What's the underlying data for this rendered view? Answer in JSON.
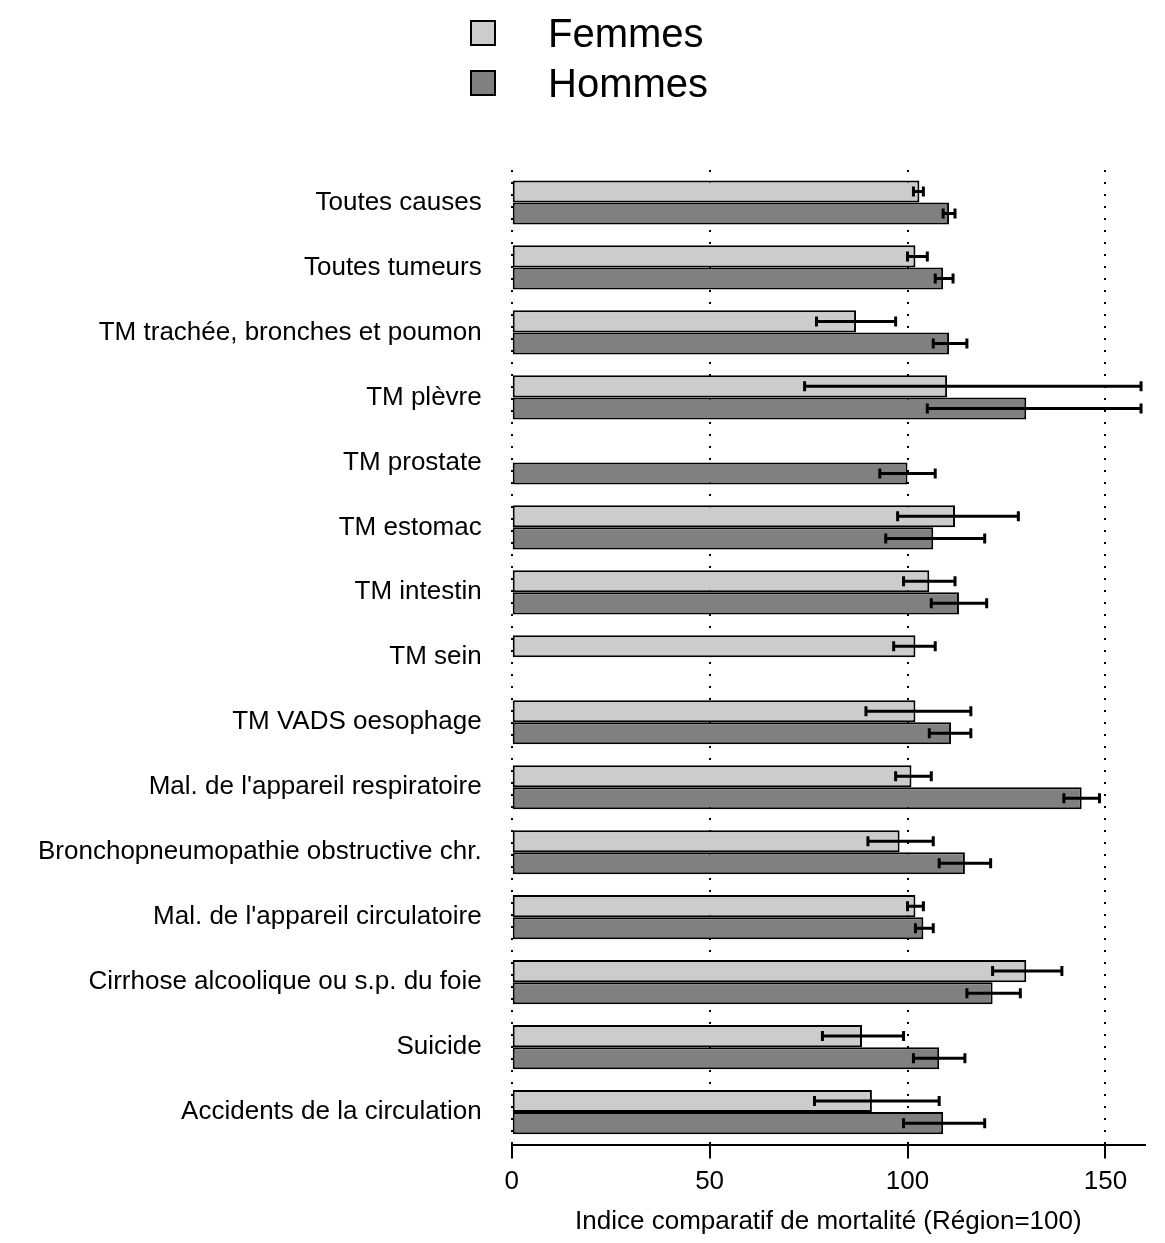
{
  "chart_data": {
    "type": "bar",
    "orientation": "horizontal",
    "xlabel": "Indice comparatif de mortalité (Région=100)",
    "categories": [
      "Toutes causes",
      "Toutes tumeurs",
      "TM trachée, bronches et poumon",
      "TM plèvre",
      "TM prostate",
      "TM estomac",
      "TM intestin",
      "TM sein",
      "TM VADS oesophage",
      "Mal. de l'appareil respiratoire",
      "Bronchopneumopathie obstructive chr.",
      "Mal. de l'appareil circulatoire",
      "Cirrhose alcoolique ou s.p. du foie",
      "Suicide",
      "Accidents de la circulation"
    ],
    "series": [
      {
        "name": "Femmes",
        "color": "#cccccc",
        "values": [
          103,
          102,
          87,
          110,
          null,
          112,
          105.5,
          102,
          102,
          101,
          98,
          102,
          130,
          88.5,
          91
        ],
        "errors": [
          [
            101.5,
            104
          ],
          [
            100,
            105
          ],
          [
            77,
            97
          ],
          [
            74,
            159
          ],
          null,
          [
            97.5,
            128
          ],
          [
            99,
            112
          ],
          [
            96.5,
            107
          ],
          [
            89.5,
            116
          ],
          [
            97,
            106
          ],
          [
            90,
            106.5
          ],
          [
            100,
            104
          ],
          [
            121.5,
            139
          ],
          [
            78.5,
            99
          ],
          [
            76.5,
            108
          ]
        ]
      },
      {
        "name": "Hommes",
        "color": "#808080",
        "values": [
          110.5,
          109,
          110.5,
          130,
          100,
          106.5,
          113,
          null,
          111,
          144,
          114.5,
          104,
          121.5,
          108,
          109
        ],
        "errors": [
          [
            109,
            112
          ],
          [
            107,
            111.5
          ],
          [
            106.5,
            115
          ],
          [
            105,
            159
          ],
          [
            93,
            107
          ],
          [
            94.5,
            119.5
          ],
          [
            106,
            120
          ],
          null,
          [
            105.5,
            116
          ],
          [
            139.5,
            148.5
          ],
          [
            108,
            121
          ],
          [
            102,
            106.5
          ],
          [
            115,
            128.5
          ],
          [
            101.5,
            114.5
          ],
          [
            99,
            119.5
          ]
        ]
      }
    ],
    "xlim": [
      0,
      160
    ],
    "xticks": [
      0,
      50,
      100,
      150
    ],
    "grid": "x",
    "legend": "top"
  }
}
